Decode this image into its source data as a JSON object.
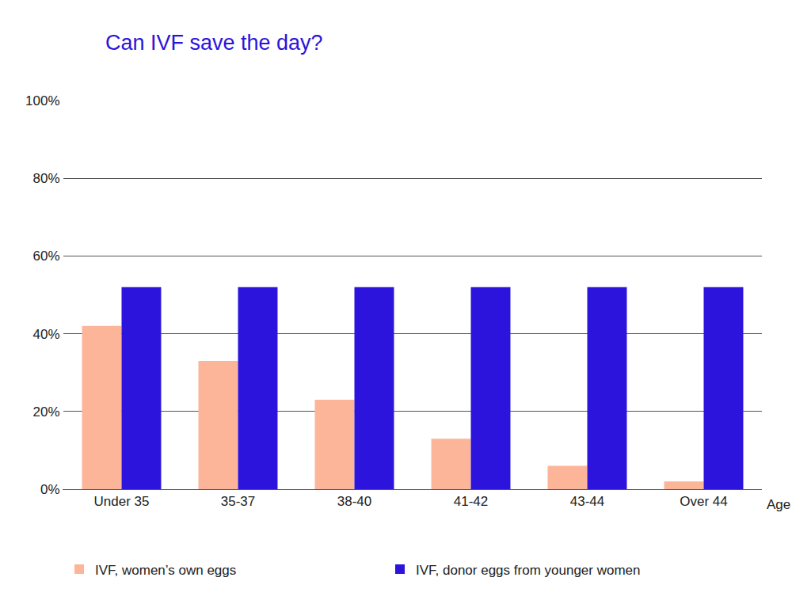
{
  "chart_data": {
    "type": "bar",
    "title": "Can IVF save the day?",
    "x_label": "Age",
    "categories": [
      "Under 35",
      "35-37",
      "38-40",
      "41-42",
      "43-44",
      "Over 44"
    ],
    "series": [
      {
        "name": "IVF, women’s own eggs",
        "color": "#fdb59a",
        "values": [
          42,
          33,
          23,
          13,
          6,
          2
        ]
      },
      {
        "name": "IVF, donor eggs from younger women",
        "color": "#2c14dc",
        "values": [
          52,
          52,
          52,
          52,
          52,
          52
        ]
      }
    ],
    "ylim": [
      0,
      100
    ],
    "yticks": [
      {
        "value": 0,
        "label": "0%"
      },
      {
        "value": 20,
        "label": "20%"
      },
      {
        "value": 40,
        "label": "40%"
      },
      {
        "value": 60,
        "label": "60%"
      },
      {
        "value": 80,
        "label": "80%"
      },
      {
        "value": 100,
        "label": "100%"
      }
    ],
    "grid": true,
    "legend": "bottom"
  }
}
